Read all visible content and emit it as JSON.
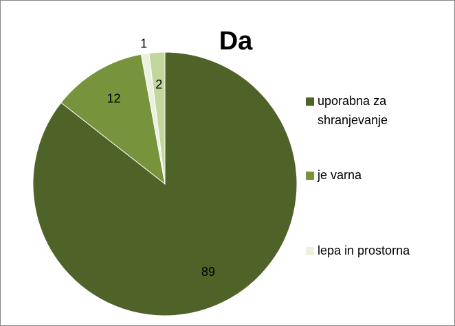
{
  "chart_data": {
    "type": "pie",
    "title": "Da",
    "categories": [
      "uporabna za shranjevanje",
      "je varna",
      "lepa in prostorna",
      null
    ],
    "values": [
      89,
      12,
      1,
      2
    ],
    "colors": [
      "#4f6228",
      "#77933c",
      "#ebf1de",
      "#c3d69b"
    ],
    "legend": "right"
  }
}
